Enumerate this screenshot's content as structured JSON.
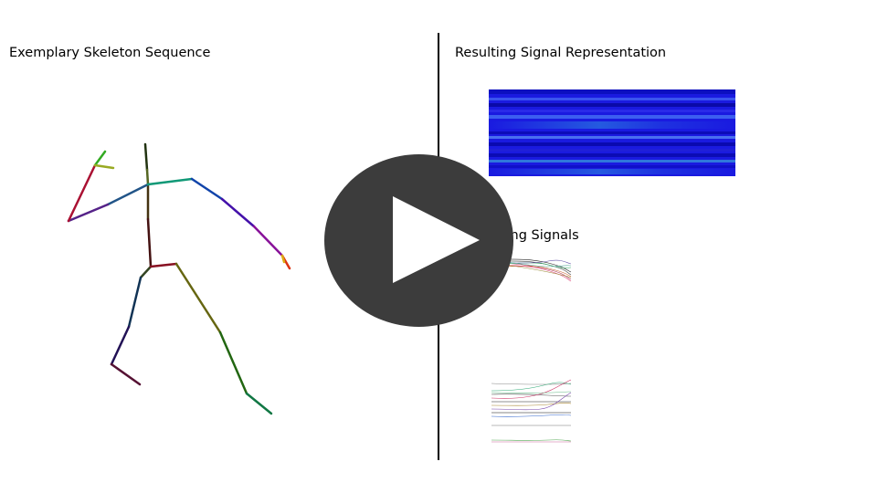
{
  "titles": {
    "skeleton": "Exemplary Skeleton Sequence",
    "signal": "Resulting Signal Representation",
    "underlying": "Underlying Signals"
  },
  "player": {
    "control": "play-button",
    "overlay_color": "#3c3c3c"
  },
  "colors": {
    "heatmap_base": "#1a1ae0",
    "heatmap_dark": "#0a0ab8",
    "heatmap_light": "#4466ee",
    "heatmap_cyan": "#3aa0d8"
  }
}
